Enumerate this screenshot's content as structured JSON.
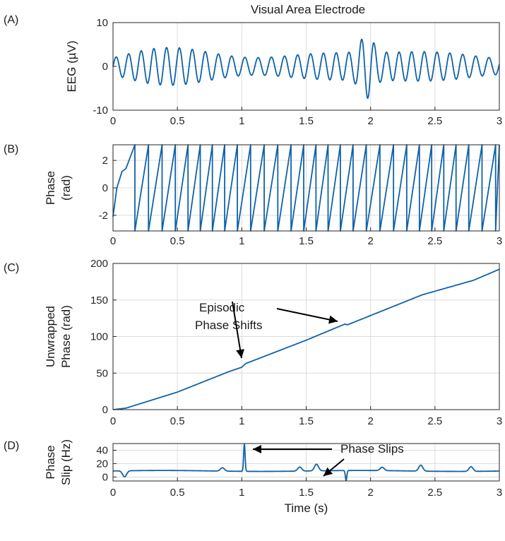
{
  "title": "Visual Area Electrode",
  "annotations": {
    "episodic_line1": "Episodic",
    "episodic_line2": "Phase Shifts",
    "phase_slips": "Phase Slips"
  },
  "colors": {
    "trace": "#0f62a8",
    "grid": "#dcdcdc",
    "axis": "#262626"
  },
  "chart_data": [
    {
      "panel": "(A)",
      "type": "line",
      "ylabel": "EEG (µV)",
      "xlabel": "",
      "xlim": [
        0,
        3
      ],
      "ylim": [
        -10,
        10
      ],
      "xticks": [
        "0",
        "0.5",
        "1",
        "1.5",
        "2",
        "2.5",
        "3"
      ],
      "yticks": [
        {
          "v": -10,
          "t": "-10"
        },
        {
          "v": 0,
          "t": "0"
        },
        {
          "v": 10,
          "t": "10"
        }
      ],
      "grid": true,
      "series": [
        {
          "name": "EEG",
          "signal": "oscillation",
          "freq_hz": 10,
          "amplitude_uv": [
            1,
            5.5
          ],
          "peak_at_s": 1.95,
          "peak_uv": 7,
          "min_uv": -8
        }
      ]
    },
    {
      "panel": "(B)",
      "type": "line",
      "ylabel": "Phase (rad)",
      "ylabel_lines": [
        "Phase",
        "(rad)"
      ],
      "xlabel": "",
      "xlim": [
        0,
        3
      ],
      "ylim": [
        -3.14159,
        3.14159
      ],
      "xticks": [
        "0",
        "0.5",
        "1",
        "1.5",
        "2",
        "2.5",
        "3"
      ],
      "yticks": [
        {
          "v": -2,
          "t": "-2"
        },
        {
          "v": 0,
          "t": "0"
        },
        {
          "v": 2,
          "t": "2"
        }
      ],
      "grid": true,
      "series": [
        {
          "name": "Wrapped phase",
          "signal": "wrapped_phase",
          "range": [
            -3.14159,
            3.14159
          ]
        }
      ]
    },
    {
      "panel": "(C)",
      "type": "line",
      "ylabel": "Unwrapped Phase (rad)",
      "ylabel_lines": [
        "Unwrapped",
        "Phase (rad)"
      ],
      "xlabel": "",
      "xlim": [
        0,
        3
      ],
      "ylim": [
        0,
        200
      ],
      "xticks": [
        "0",
        "0.5",
        "1",
        "1.5",
        "2",
        "2.5",
        "3"
      ],
      "yticks": [
        {
          "v": 0,
          "t": "0"
        },
        {
          "v": 50,
          "t": "50"
        },
        {
          "v": 100,
          "t": "100"
        },
        {
          "v": 150,
          "t": "150"
        },
        {
          "v": 200,
          "t": "200"
        }
      ],
      "grid": true,
      "series": [
        {
          "name": "Unwrapped phase",
          "x": [
            0,
            0.05,
            0.1,
            0.5,
            0.9,
            1.0,
            1.03,
            1.5,
            1.8,
            1.82,
            2.4,
            2.8,
            3.0
          ],
          "y": [
            0,
            1,
            2,
            24,
            52,
            58,
            63,
            95,
            117,
            116,
            157,
            177,
            192
          ]
        }
      ]
    },
    {
      "panel": "(D)",
      "type": "line",
      "ylabel": "Phase Slip (Hz)",
      "ylabel_lines": [
        "Phase",
        "Slip (Hz)"
      ],
      "xlabel": "Time (s)",
      "xlim": [
        0,
        3
      ],
      "ylim": [
        -6,
        50
      ],
      "xticks": [
        "0",
        "0.5",
        "1",
        "1.5",
        "2",
        "2.5",
        "3"
      ],
      "yticks": [
        {
          "v": 0,
          "t": "0"
        },
        {
          "v": 20,
          "t": "20"
        },
        {
          "v": 40,
          "t": "40"
        }
      ],
      "grid": true,
      "series": [
        {
          "name": "Phase slip",
          "baseline_hz": 9,
          "events": [
            {
              "t": 0.09,
              "v": 0
            },
            {
              "t": 0.85,
              "v": 14
            },
            {
              "t": 1.02,
              "v": 50
            },
            {
              "t": 1.45,
              "v": 15
            },
            {
              "t": 1.58,
              "v": 19
            },
            {
              "t": 1.81,
              "v": -6
            },
            {
              "t": 2.09,
              "v": 14
            },
            {
              "t": 2.39,
              "v": 18
            },
            {
              "t": 2.78,
              "v": 16
            }
          ]
        }
      ]
    }
  ]
}
